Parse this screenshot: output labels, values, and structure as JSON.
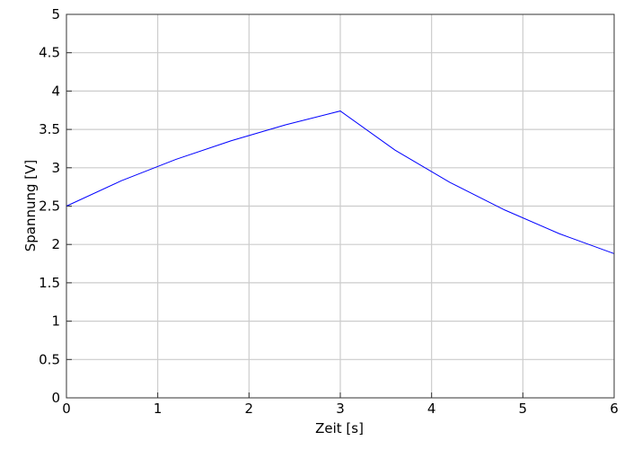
{
  "chart_data": {
    "type": "line",
    "xlabel": "Zeit [s]",
    "ylabel": "Spannung [V]",
    "xlim": [
      0,
      6
    ],
    "ylim": [
      0,
      5
    ],
    "x_ticks": [
      "0",
      "1",
      "2",
      "3",
      "4",
      "5",
      "6"
    ],
    "y_ticks": [
      "0",
      "0.5",
      "1",
      "1.5",
      "2",
      "2.5",
      "3",
      "3.5",
      "4",
      "4.5",
      "5"
    ],
    "grid": true,
    "series": [
      {
        "color": "#0000ff",
        "x": [
          0,
          0.6,
          1.2,
          1.8,
          2.4,
          3.0,
          3.6,
          4.2,
          4.8,
          5.4,
          6.0
        ],
        "y": [
          2.5,
          2.83,
          3.11,
          3.35,
          3.56,
          3.74,
          3.23,
          2.81,
          2.45,
          2.14,
          1.88
        ]
      }
    ]
  }
}
